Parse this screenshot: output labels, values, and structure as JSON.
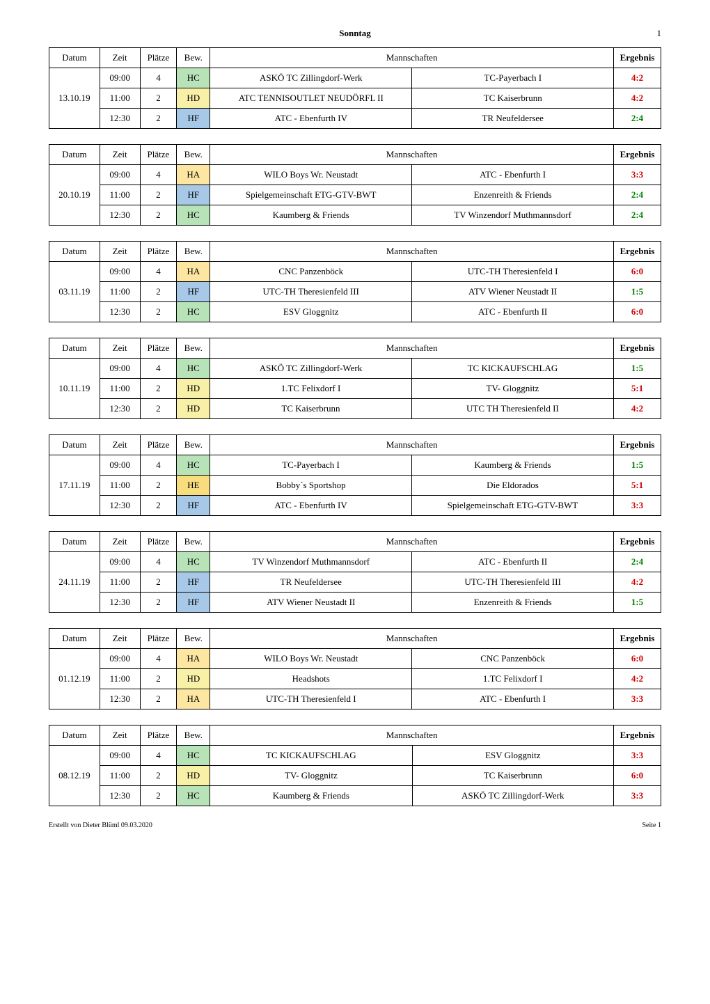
{
  "page_title": "Sonntag",
  "page_number": "1",
  "headers": {
    "datum": "Datum",
    "zeit": "Zeit",
    "plaetze": "Plätze",
    "bew": "Bew.",
    "mannschaften": "Mannschaften",
    "ergebnis": "Ergebnis"
  },
  "bew_colors": {
    "HA": "#fce6a2",
    "HC": "#b8e2b8",
    "HD": "#f9f0a8",
    "HE": "#f8dd7e",
    "HF": "#a8c8e8"
  },
  "result_colors": {
    "win": "#cc0000",
    "loss": "#008000",
    "draw": "#cc0000"
  },
  "blocks": [
    {
      "datum": "13.10.19",
      "rows": [
        {
          "zeit": "09:00",
          "plaetze": "4",
          "bew": "HC",
          "team1": "ASKÖ TC Zillingdorf-Werk",
          "team2": "TC-Payerbach I",
          "ergebnis": "4:2",
          "color": "#cc0000"
        },
        {
          "zeit": "11:00",
          "plaetze": "2",
          "bew": "HD",
          "team1": "ATC TENNISOUTLET NEUDÖRFL II",
          "team2": "TC Kaiserbrunn",
          "ergebnis": "4:2",
          "color": "#cc0000"
        },
        {
          "zeit": "12:30",
          "plaetze": "2",
          "bew": "HF",
          "team1": "ATC - Ebenfurth IV",
          "team2": "TR Neufeldersee",
          "ergebnis": "2:4",
          "color": "#008000"
        }
      ]
    },
    {
      "datum": "20.10.19",
      "rows": [
        {
          "zeit": "09:00",
          "plaetze": "4",
          "bew": "HA",
          "team1": "WILO Boys Wr. Neustadt",
          "team2": "ATC - Ebenfurth I",
          "ergebnis": "3:3",
          "color": "#cc0000"
        },
        {
          "zeit": "11:00",
          "plaetze": "2",
          "bew": "HF",
          "team1": "Spielgemeinschaft ETG-GTV-BWT",
          "team2": "Enzenreith & Friends",
          "ergebnis": "2:4",
          "color": "#008000"
        },
        {
          "zeit": "12:30",
          "plaetze": "2",
          "bew": "HC",
          "team1": "Kaumberg & Friends",
          "team2": "TV Winzendorf Muthmannsdorf",
          "ergebnis": "2:4",
          "color": "#008000"
        }
      ]
    },
    {
      "datum": "03.11.19",
      "rows": [
        {
          "zeit": "09:00",
          "plaetze": "4",
          "bew": "HA",
          "team1": "CNC Panzenböck",
          "team2": "UTC-TH Theresienfeld I",
          "ergebnis": "6:0",
          "color": "#cc0000"
        },
        {
          "zeit": "11:00",
          "plaetze": "2",
          "bew": "HF",
          "team1": "UTC-TH Theresienfeld III",
          "team2": "ATV Wiener Neustadt II",
          "ergebnis": "1:5",
          "color": "#008000"
        },
        {
          "zeit": "12:30",
          "plaetze": "2",
          "bew": "HC",
          "team1": "ESV Gloggnitz",
          "team2": "ATC - Ebenfurth II",
          "ergebnis": "6:0",
          "color": "#cc0000"
        }
      ]
    },
    {
      "datum": "10.11.19",
      "rows": [
        {
          "zeit": "09:00",
          "plaetze": "4",
          "bew": "HC",
          "team1": "ASKÖ TC Zillingdorf-Werk",
          "team2": "TC KICKAUFSCHLAG",
          "ergebnis": "1:5",
          "color": "#008000"
        },
        {
          "zeit": "11:00",
          "plaetze": "2",
          "bew": "HD",
          "team1": "1.TC Felixdorf I",
          "team2": "TV- Gloggnitz",
          "ergebnis": "5:1",
          "color": "#cc0000"
        },
        {
          "zeit": "12:30",
          "plaetze": "2",
          "bew": "HD",
          "team1": "TC Kaiserbrunn",
          "team2": "UTC TH Theresienfeld II",
          "ergebnis": "4:2",
          "color": "#cc0000"
        }
      ]
    },
    {
      "datum": "17.11.19",
      "rows": [
        {
          "zeit": "09:00",
          "plaetze": "4",
          "bew": "HC",
          "team1": "TC-Payerbach I",
          "team2": "Kaumberg & Friends",
          "ergebnis": "1:5",
          "color": "#008000"
        },
        {
          "zeit": "11:00",
          "plaetze": "2",
          "bew": "HE",
          "team1": "Bobby´s Sportshop",
          "team2": "Die Eldorados",
          "ergebnis": "5:1",
          "color": "#cc0000"
        },
        {
          "zeit": "12:30",
          "plaetze": "2",
          "bew": "HF",
          "team1": "ATC - Ebenfurth IV",
          "team2": "Spielgemeinschaft ETG-GTV-BWT",
          "ergebnis": "3:3",
          "color": "#cc0000"
        }
      ]
    },
    {
      "datum": "24.11.19",
      "rows": [
        {
          "zeit": "09:00",
          "plaetze": "4",
          "bew": "HC",
          "team1": "TV Winzendorf Muthmannsdorf",
          "team2": "ATC - Ebenfurth II",
          "ergebnis": "2:4",
          "color": "#008000"
        },
        {
          "zeit": "11:00",
          "plaetze": "2",
          "bew": "HF",
          "team1": "TR Neufeldersee",
          "team2": "UTC-TH Theresienfeld III",
          "ergebnis": "4:2",
          "color": "#cc0000"
        },
        {
          "zeit": "12:30",
          "plaetze": "2",
          "bew": "HF",
          "team1": "ATV Wiener Neustadt II",
          "team2": "Enzenreith & Friends",
          "ergebnis": "1:5",
          "color": "#008000"
        }
      ]
    },
    {
      "datum": "01.12.19",
      "rows": [
        {
          "zeit": "09:00",
          "plaetze": "4",
          "bew": "HA",
          "team1": "WILO Boys Wr. Neustadt",
          "team2": "CNC Panzenböck",
          "ergebnis": "6:0",
          "color": "#cc0000"
        },
        {
          "zeit": "11:00",
          "plaetze": "2",
          "bew": "HD",
          "team1": "Headshots",
          "team2": "1.TC Felixdorf I",
          "ergebnis": "4:2",
          "color": "#cc0000"
        },
        {
          "zeit": "12:30",
          "plaetze": "2",
          "bew": "HA",
          "team1": "UTC-TH Theresienfeld I",
          "team2": "ATC - Ebenfurth I",
          "ergebnis": "3:3",
          "color": "#cc0000"
        }
      ]
    },
    {
      "datum": "08.12.19",
      "rows": [
        {
          "zeit": "09:00",
          "plaetze": "4",
          "bew": "HC",
          "team1": "TC KICKAUFSCHLAG",
          "team2": "ESV Gloggnitz",
          "ergebnis": "3:3",
          "color": "#cc0000"
        },
        {
          "zeit": "11:00",
          "plaetze": "2",
          "bew": "HD",
          "team1": "TV- Gloggnitz",
          "team2": "TC Kaiserbrunn",
          "ergebnis": "6:0",
          "color": "#cc0000"
        },
        {
          "zeit": "12:30",
          "plaetze": "2",
          "bew": "HC",
          "team1": "Kaumberg & Friends",
          "team2": "ASKÖ TC Zillingdorf-Werk",
          "ergebnis": "3:3",
          "color": "#cc0000"
        }
      ]
    }
  ],
  "footer": {
    "left": "Erstellt von Dieter Blüml 09.03.2020",
    "right": "Seite 1"
  }
}
